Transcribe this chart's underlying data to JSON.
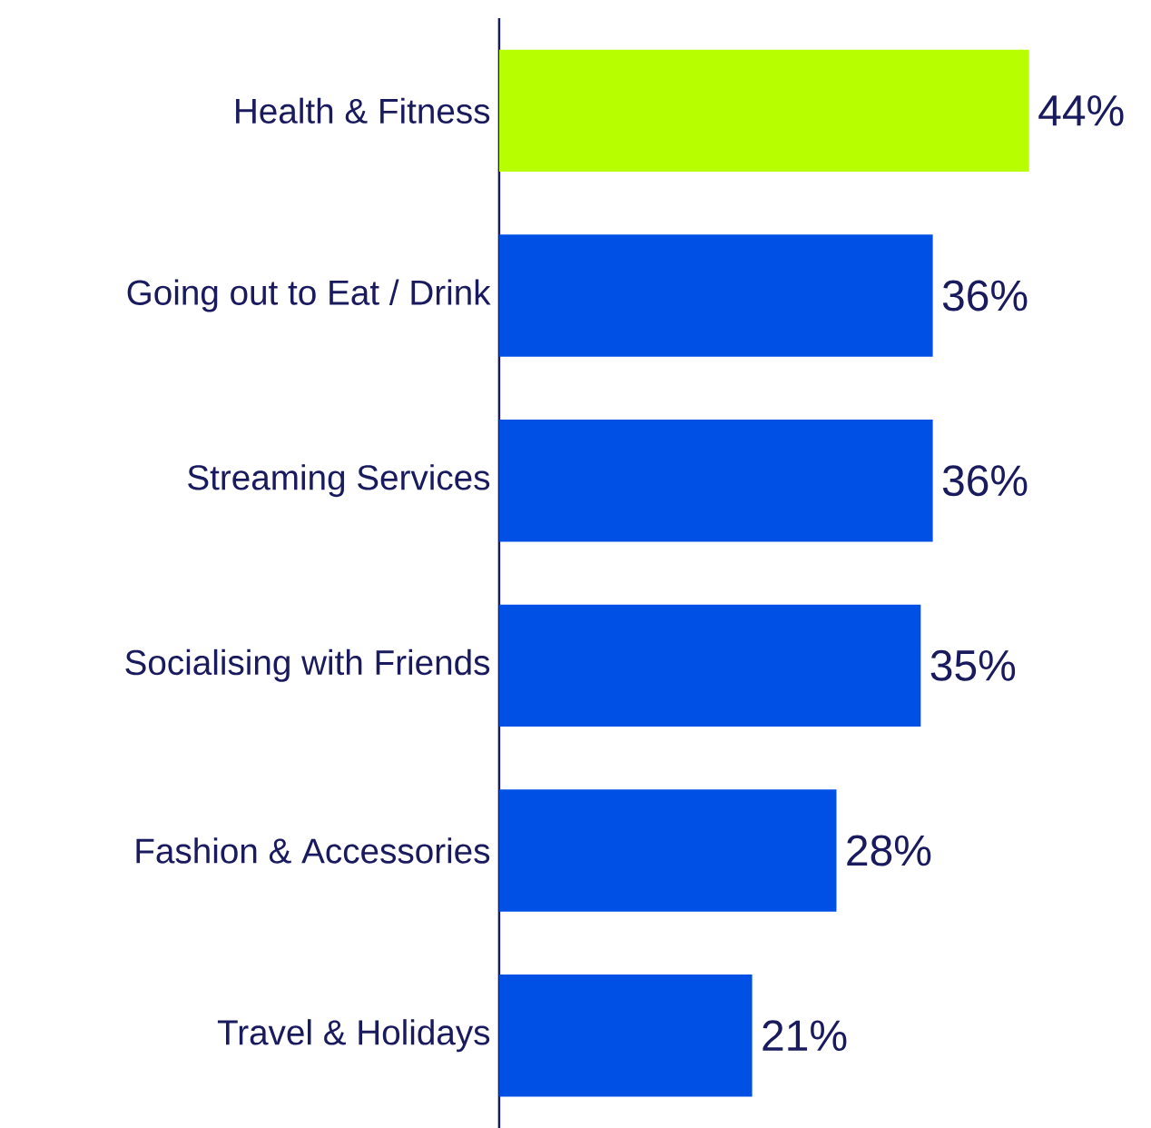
{
  "chart_data": {
    "type": "bar",
    "orientation": "horizontal",
    "categories": [
      "Health & Fitness",
      "Going out to Eat / Drink",
      "Streaming Services",
      "Socialising with Friends",
      "Fashion & Accessories",
      "Travel & Holidays"
    ],
    "values": [
      44,
      36,
      36,
      35,
      28,
      21
    ],
    "value_labels": [
      "44%",
      "36%",
      "36%",
      "35%",
      "28%",
      "21%"
    ],
    "colors": [
      "#b7ff00",
      "#0050e6",
      "#0050e6",
      "#0050e6",
      "#0050e6",
      "#0050e6"
    ]
  }
}
